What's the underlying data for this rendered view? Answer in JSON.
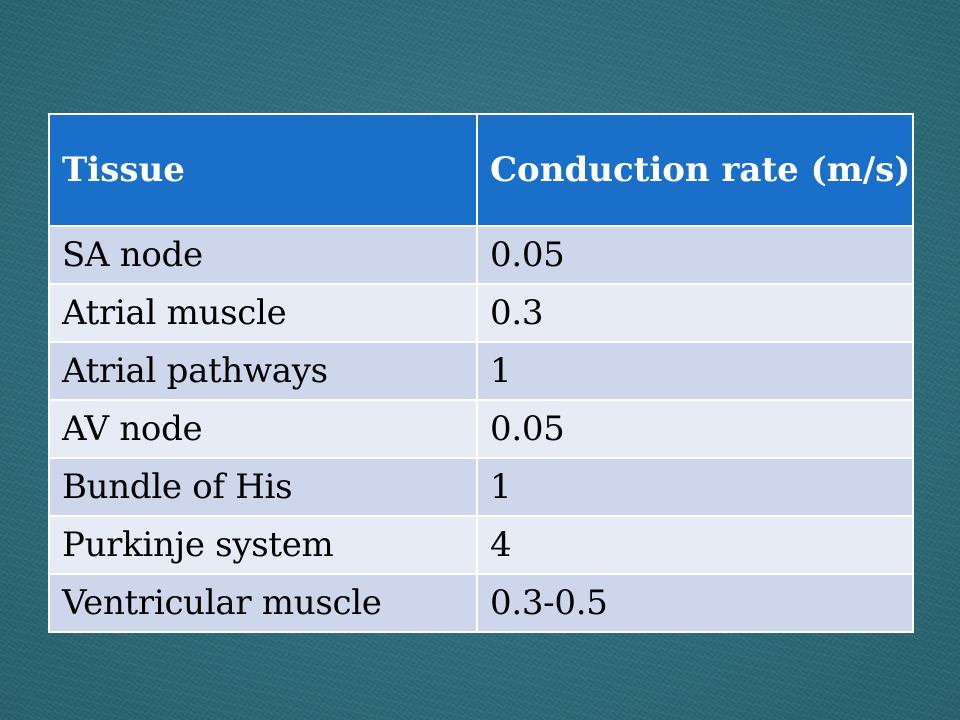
{
  "table": {
    "headers": [
      "Tissue",
      "Conduction rate (m/s)"
    ],
    "rows": [
      [
        "SA node",
        "0.05"
      ],
      [
        "Atrial muscle",
        "0.3"
      ],
      [
        "Atrial pathways",
        "1"
      ],
      [
        "AV node",
        "0.05"
      ],
      [
        "Bundle of His",
        "1"
      ],
      [
        "Purkinje system",
        "4"
      ],
      [
        "Ventricular muscle",
        "0.3-0.5"
      ]
    ]
  },
  "colors": {
    "background": "#2f6f7d",
    "header": "#1a70c9",
    "row_dark": "#cdd6ea",
    "row_light": "#e7ebf5"
  }
}
